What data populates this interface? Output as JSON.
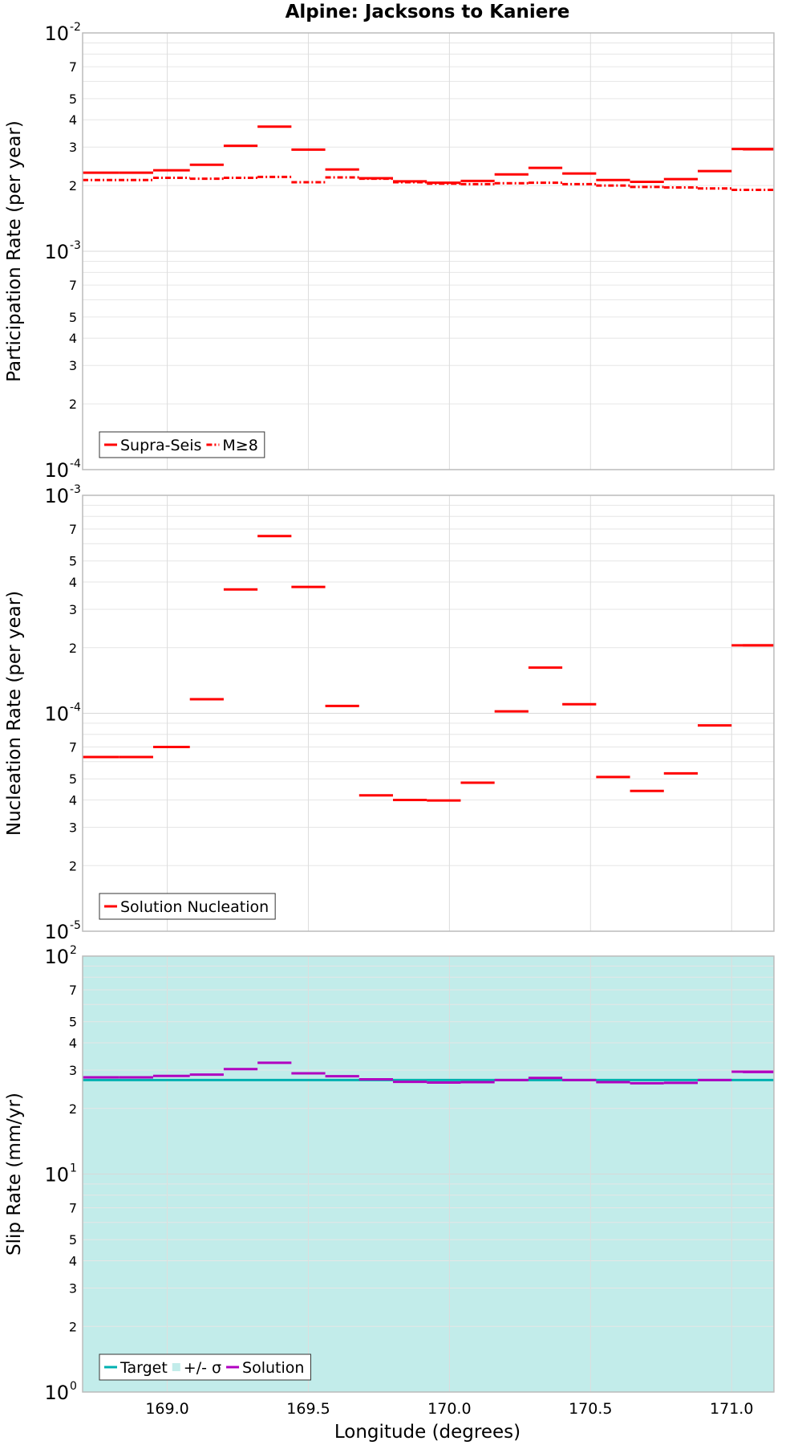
{
  "chart_data": {
    "type": "line",
    "title": "Alpine: Jacksons to Kaniere",
    "xlabel": "Longitude (degrees)",
    "xlim": [
      168.7,
      171.15
    ],
    "x_ticks": [
      "169.0",
      "169.5",
      "170.0",
      "170.5",
      "171.0"
    ],
    "x_tick_values": [
      169.0,
      169.5,
      170.0,
      170.5,
      171.0
    ],
    "colors": {
      "red": "#ff0000",
      "cyan": "#00b0b0",
      "purple": "#b000c0",
      "band": "#c2ecea"
    },
    "panels": [
      {
        "id": "participation",
        "ylabel": "Participation Rate (per year)",
        "yscale": "log",
        "ylim": [
          0.0001,
          0.01
        ],
        "y_major_ticks": [
          {
            "base": "10",
            "exp": "-4",
            "value": 0.0001
          },
          {
            "base": "10",
            "exp": "-3",
            "value": 0.001
          },
          {
            "base": "10",
            "exp": "-2",
            "value": 0.01
          }
        ],
        "y_minor_labels": [
          "2",
          "3",
          "4",
          "5",
          "7"
        ],
        "legend": [
          {
            "label": "Supra-Seis",
            "style": "solid",
            "color": "#ff0000"
          },
          {
            "label": "M≥8",
            "style": "dashdot",
            "color": "#ff0000"
          }
        ],
        "series": [
          {
            "name": "Supra-Seis",
            "style": "solid",
            "color": "#ff0000",
            "segments": [
              [
                168.7,
                168.83,
                0.00229
              ],
              [
                168.83,
                168.95,
                0.00229
              ],
              [
                168.95,
                169.08,
                0.00235
              ],
              [
                169.08,
                169.2,
                0.00249
              ],
              [
                169.2,
                169.32,
                0.00304
              ],
              [
                169.32,
                169.44,
                0.00372
              ],
              [
                169.44,
                169.56,
                0.00292
              ],
              [
                169.56,
                169.68,
                0.00237
              ],
              [
                169.68,
                169.8,
                0.00216
              ],
              [
                169.8,
                169.92,
                0.00209
              ],
              [
                169.92,
                170.04,
                0.00206
              ],
              [
                170.04,
                170.16,
                0.0021
              ],
              [
                170.16,
                170.28,
                0.00225
              ],
              [
                170.28,
                170.4,
                0.00241
              ],
              [
                170.4,
                170.52,
                0.00227
              ],
              [
                170.52,
                170.64,
                0.00212
              ],
              [
                170.64,
                170.76,
                0.00208
              ],
              [
                170.76,
                170.88,
                0.00214
              ],
              [
                170.88,
                171.0,
                0.00233
              ],
              [
                171.0,
                171.15,
                0.00294
              ],
              [
                171.04,
                171.15,
                0.00293
              ]
            ]
          },
          {
            "name": "M≥8",
            "style": "dashdot",
            "color": "#ff0000",
            "segments": [
              [
                168.7,
                168.95,
                0.00212
              ],
              [
                168.95,
                169.08,
                0.00217
              ],
              [
                169.08,
                169.2,
                0.00215
              ],
              [
                169.2,
                169.32,
                0.00217
              ],
              [
                169.32,
                169.44,
                0.00219
              ],
              [
                169.44,
                169.56,
                0.00207
              ],
              [
                169.56,
                169.68,
                0.00218
              ],
              [
                169.68,
                169.8,
                0.00215
              ],
              [
                169.8,
                169.92,
                0.00207
              ],
              [
                169.92,
                170.04,
                0.00204
              ],
              [
                170.04,
                170.16,
                0.00203
              ],
              [
                170.16,
                170.28,
                0.00205
              ],
              [
                170.28,
                170.4,
                0.00206
              ],
              [
                170.4,
                170.52,
                0.00203
              ],
              [
                170.52,
                170.64,
                0.002
              ],
              [
                170.64,
                170.76,
                0.00197
              ],
              [
                170.76,
                170.88,
                0.00196
              ],
              [
                170.88,
                171.0,
                0.00194
              ],
              [
                171.0,
                171.15,
                0.00191
              ]
            ]
          }
        ]
      },
      {
        "id": "nucleation",
        "ylabel": "Nucleation Rate (per year)",
        "yscale": "log",
        "ylim": [
          1e-05,
          0.001
        ],
        "y_major_ticks": [
          {
            "base": "10",
            "exp": "-5",
            "value": 1e-05
          },
          {
            "base": "10",
            "exp": "-4",
            "value": 0.0001
          },
          {
            "base": "10",
            "exp": "-3",
            "value": 0.001
          }
        ],
        "y_minor_labels": [
          "2",
          "3",
          "4",
          "5",
          "7"
        ],
        "legend": [
          {
            "label": "Solution Nucleation",
            "style": "solid",
            "color": "#ff0000"
          }
        ],
        "series": [
          {
            "name": "Solution Nucleation",
            "style": "solid",
            "color": "#ff0000",
            "segments": [
              [
                168.7,
                168.83,
                6.3e-05
              ],
              [
                168.83,
                168.95,
                6.3e-05
              ],
              [
                168.95,
                169.08,
                7e-05
              ],
              [
                169.08,
                169.2,
                0.000116
              ],
              [
                169.2,
                169.32,
                0.00037
              ],
              [
                169.32,
                169.44,
                0.00065
              ],
              [
                169.44,
                169.56,
                0.00038
              ],
              [
                169.56,
                169.68,
                0.000108
              ],
              [
                169.68,
                169.8,
                4.2e-05
              ],
              [
                169.8,
                169.92,
                4e-05
              ],
              [
                169.92,
                170.04,
                3.98e-05
              ],
              [
                170.04,
                170.16,
                4.8e-05
              ],
              [
                170.16,
                170.28,
                0.000102
              ],
              [
                170.28,
                170.4,
                0.000162
              ],
              [
                170.4,
                170.52,
                0.00011
              ],
              [
                170.52,
                170.64,
                5.1e-05
              ],
              [
                170.64,
                170.76,
                4.4e-05
              ],
              [
                170.76,
                170.88,
                5.3e-05
              ],
              [
                170.88,
                171.0,
                8.8e-05
              ],
              [
                171.0,
                171.15,
                0.000205
              ],
              [
                171.04,
                171.15,
                0.000205
              ]
            ]
          }
        ]
      },
      {
        "id": "slip",
        "ylabel": "Slip Rate (mm/yr)",
        "yscale": "log",
        "ylim": [
          1,
          100
        ],
        "y_major_ticks": [
          {
            "base": "10",
            "exp": "0",
            "value": 1
          },
          {
            "base": "10",
            "exp": "1",
            "value": 10
          },
          {
            "base": "10",
            "exp": "2",
            "value": 100
          }
        ],
        "y_minor_labels": [
          "2",
          "3",
          "4",
          "5",
          "7"
        ],
        "band": {
          "label": "+/- σ",
          "color": "#c2ecea",
          "range": [
            1,
            100
          ]
        },
        "legend": [
          {
            "label": "Target",
            "style": "solid",
            "color": "#00b0b0"
          },
          {
            "label": "+/- σ",
            "style": "band",
            "color": "#c2ecea"
          },
          {
            "label": "Solution",
            "style": "solid",
            "color": "#b000c0"
          }
        ],
        "series": [
          {
            "name": "Target",
            "style": "solid",
            "color": "#00b0b0",
            "segments": [
              [
                168.7,
                171.15,
                27
              ]
            ]
          },
          {
            "name": "Solution",
            "style": "solid",
            "color": "#b000c0",
            "segments": [
              [
                168.7,
                168.83,
                27.8
              ],
              [
                168.83,
                168.95,
                27.8
              ],
              [
                168.95,
                169.08,
                28.2
              ],
              [
                169.08,
                169.2,
                28.6
              ],
              [
                169.2,
                169.32,
                30.3
              ],
              [
                169.32,
                169.44,
                32.4
              ],
              [
                169.44,
                169.56,
                29.0
              ],
              [
                169.56,
                169.68,
                28.1
              ],
              [
                169.68,
                169.8,
                27.2
              ],
              [
                169.8,
                169.92,
                26.5
              ],
              [
                169.92,
                170.04,
                26.3
              ],
              [
                170.04,
                170.16,
                26.4
              ],
              [
                170.16,
                170.28,
                27.0
              ],
              [
                170.28,
                170.4,
                27.6
              ],
              [
                170.4,
                170.52,
                27.0
              ],
              [
                170.52,
                170.64,
                26.4
              ],
              [
                170.64,
                170.76,
                26.1
              ],
              [
                170.76,
                170.88,
                26.2
              ],
              [
                170.88,
                171.0,
                27.0
              ],
              [
                171.0,
                171.15,
                29.5
              ],
              [
                171.04,
                171.15,
                29.4
              ]
            ]
          }
        ]
      }
    ]
  }
}
